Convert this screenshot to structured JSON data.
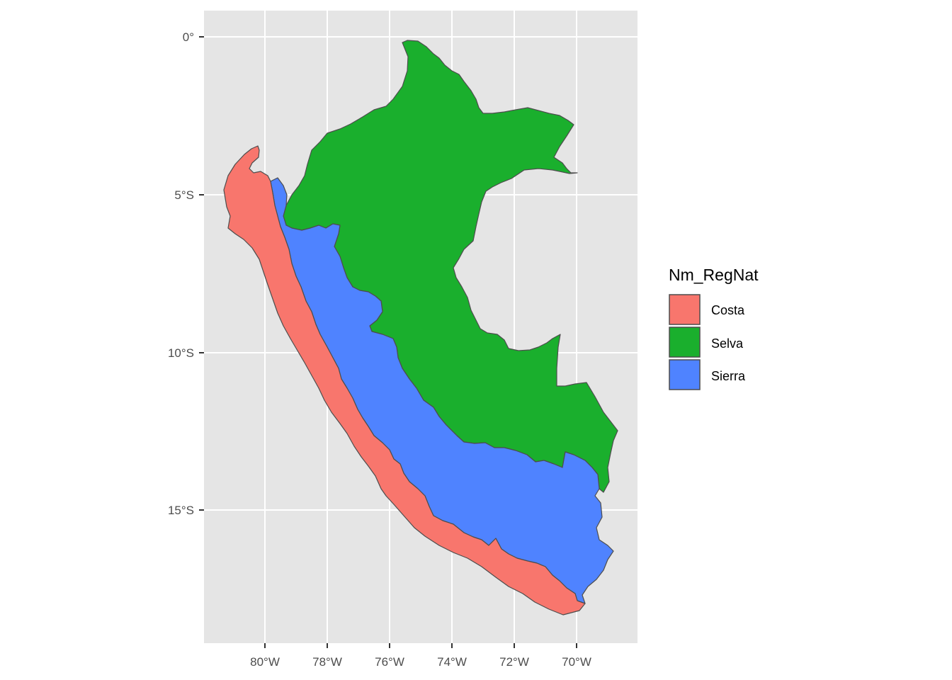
{
  "map": {
    "x_axis": {
      "ticks": [
        "80°W",
        "78°W",
        "76°W",
        "74°W",
        "72°W",
        "70°W"
      ],
      "values": [
        -80,
        -78,
        -76,
        -74,
        -72,
        -70
      ]
    },
    "y_axis": {
      "ticks": [
        "0°",
        "5°S",
        "10°S",
        "15°S"
      ],
      "values": [
        0,
        -5,
        -10,
        -15
      ]
    },
    "panel_background": "#e5e5e5",
    "grid_color": "#ffffff",
    "border_color": "#4d4d4d",
    "regions": [
      {
        "name": "Costa",
        "color": "#f8766d"
      },
      {
        "name": "Selva",
        "color": "#1aaf2d"
      },
      {
        "name": "Sierra",
        "color": "#4f83ff"
      }
    ]
  },
  "legend": {
    "title": "Nm_RegNat",
    "items": [
      {
        "label": "Costa",
        "color": "#f8766d"
      },
      {
        "label": "Selva",
        "color": "#1aaf2d"
      },
      {
        "label": "Sierra",
        "color": "#4f83ff"
      }
    ]
  }
}
